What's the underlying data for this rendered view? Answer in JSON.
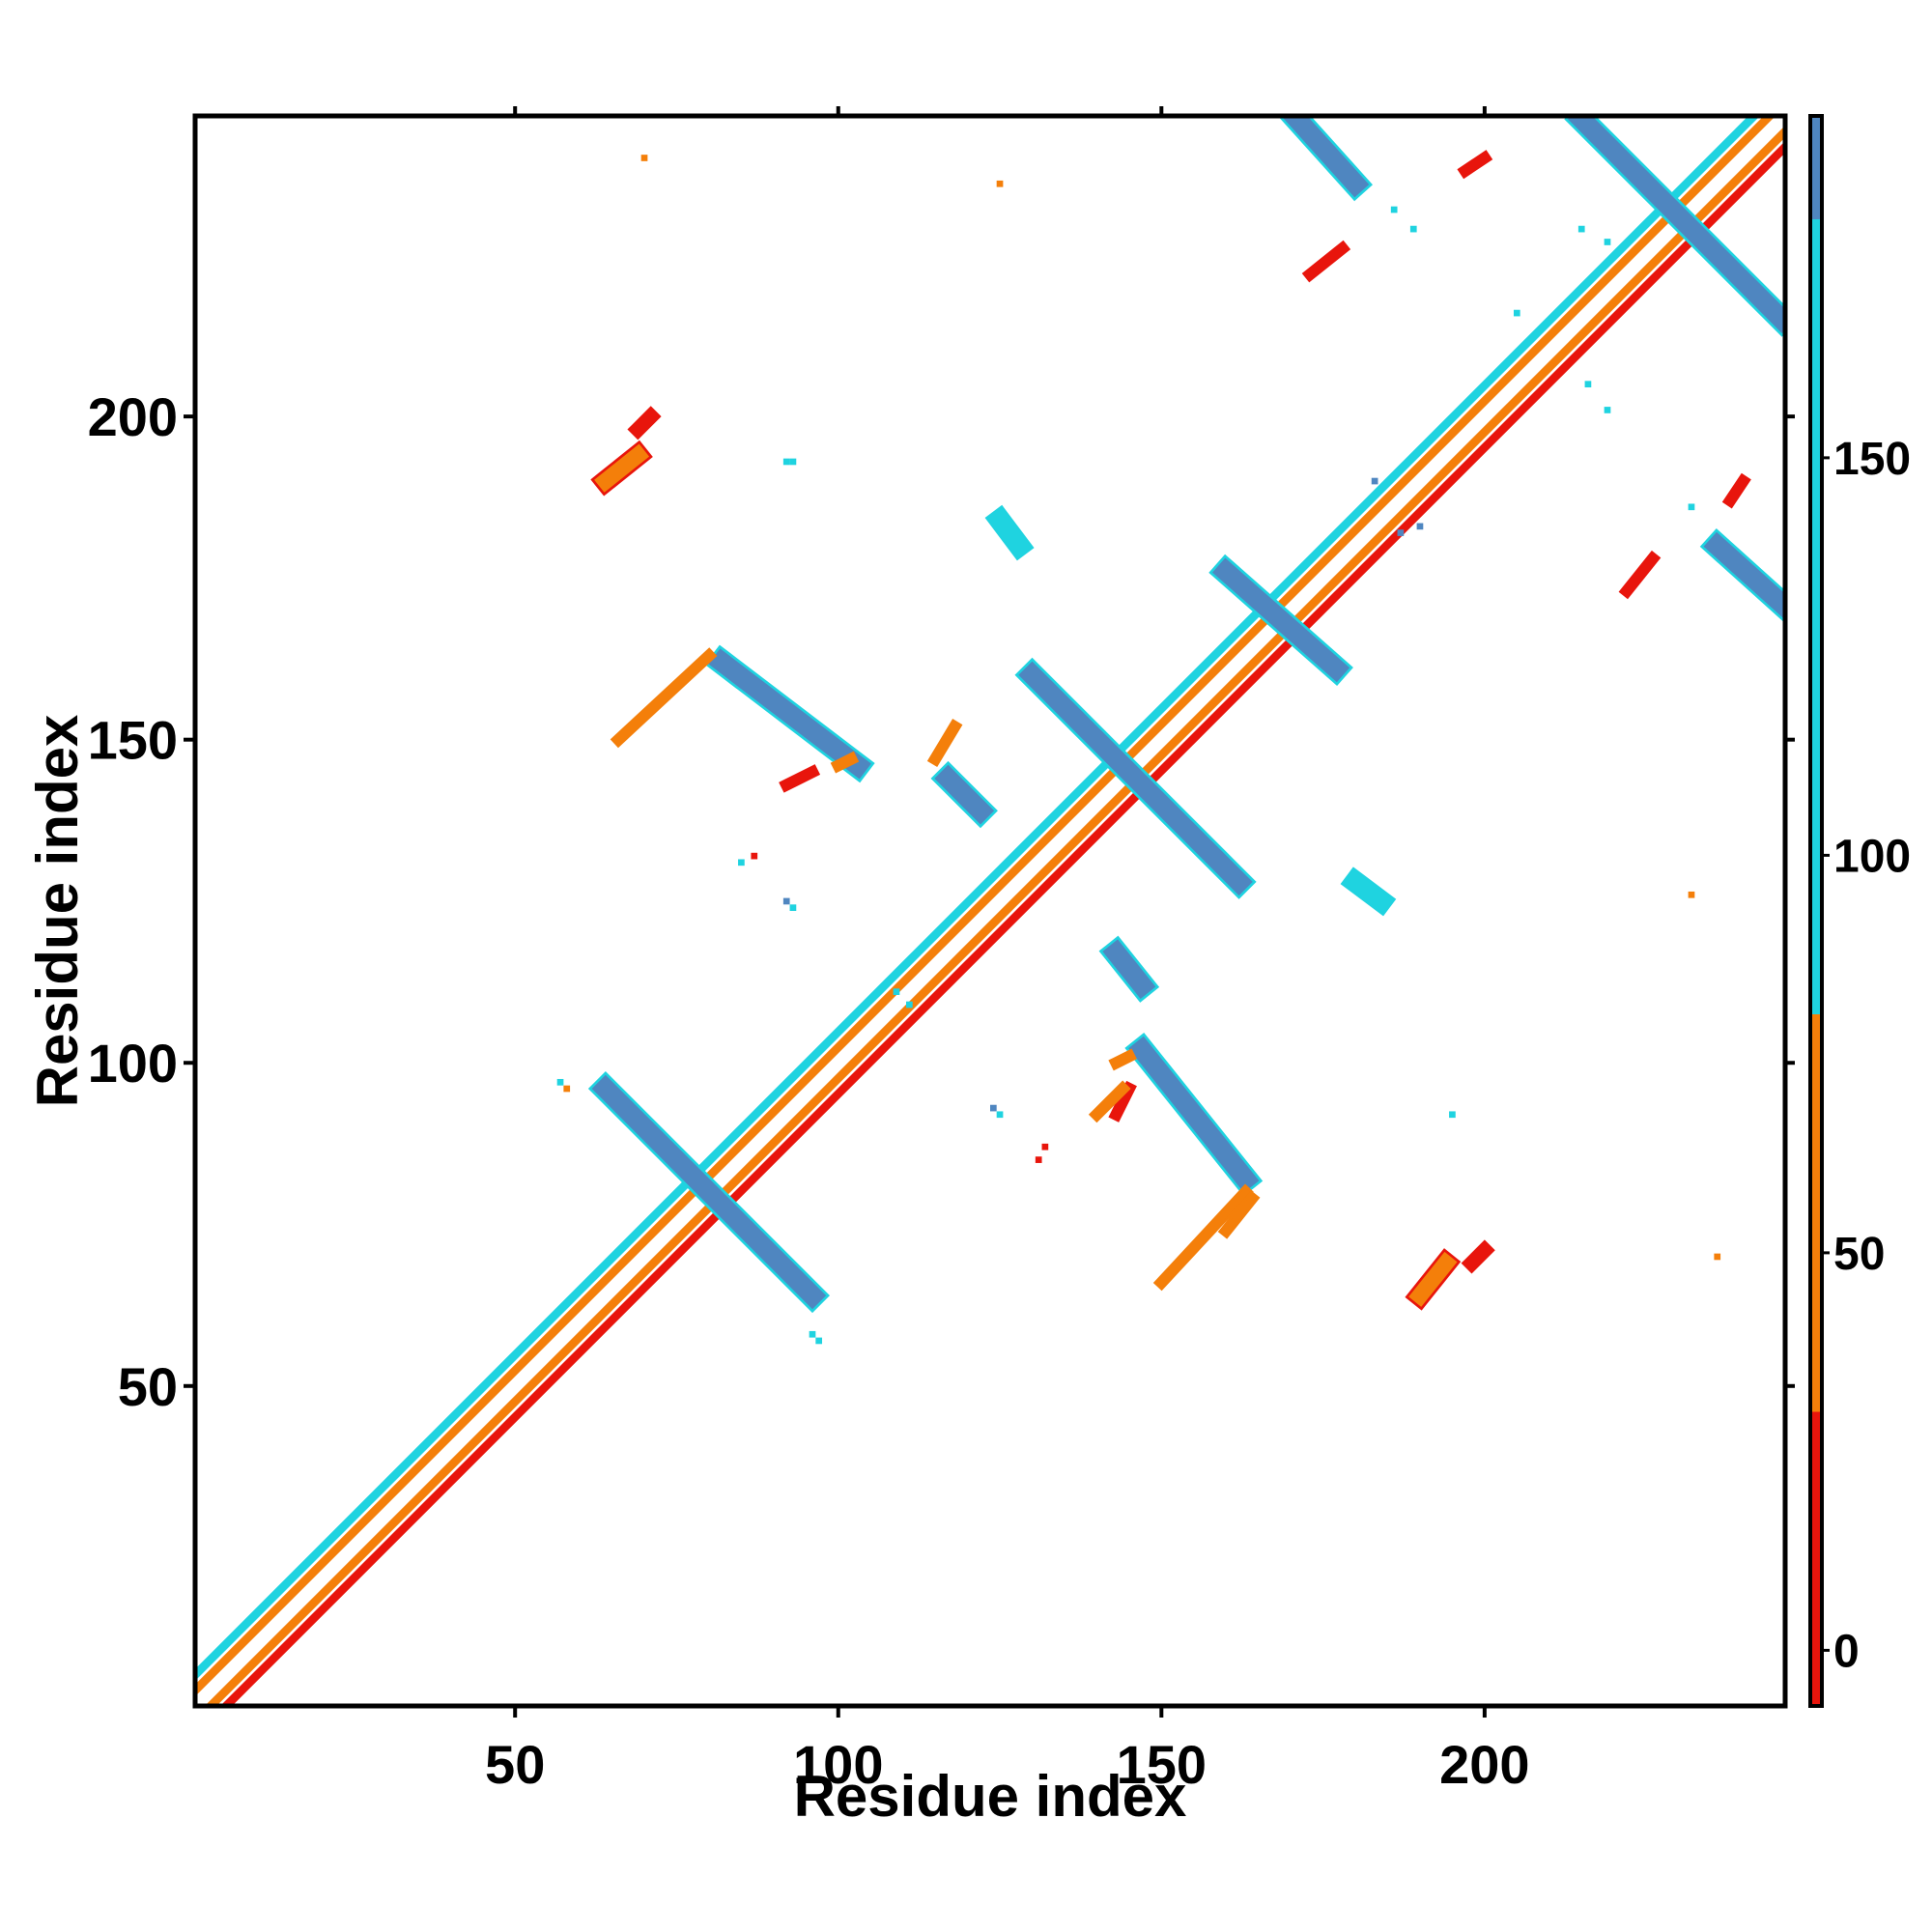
{
  "chart_data": {
    "type": "heatmap",
    "title": "",
    "xlabel": "Residue index",
    "ylabel": "Residue index",
    "xlim": [
      1,
      246
    ],
    "ylim": [
      1,
      246
    ],
    "x_ticks": [
      50,
      100,
      150,
      200
    ],
    "y_ticks": [
      50,
      100,
      150,
      200
    ],
    "grid": false,
    "colorbar": {
      "ticks": [
        0,
        50,
        100,
        150
      ],
      "range": [
        -7,
        193
      ],
      "bands": [
        {
          "from": -7,
          "to": 30,
          "color": "#e8150c"
        },
        {
          "from": 30,
          "to": 80,
          "color": "#f47f0a"
        },
        {
          "from": 80,
          "to": 180,
          "color": "#1fd3e0"
        },
        {
          "from": 180,
          "to": 193,
          "color": "#4f86c0"
        }
      ]
    },
    "features": [
      {
        "kind": "diagonal",
        "from": 1,
        "to": 246,
        "bands": [
          {
            "offset": 0,
            "width": 1.2,
            "color": "#ffffff"
          },
          {
            "offset": 1.2,
            "width": 1.3,
            "color": "#f47f0a"
          },
          {
            "offset": 2.4,
            "width": 1.3,
            "color": "#e8150c"
          },
          {
            "offset": -1.2,
            "width": 1.3,
            "color": "#f47f0a"
          },
          {
            "offset": -2.4,
            "width": 1.3,
            "color": "#1fd3e0"
          }
        ]
      },
      {
        "kind": "segment",
        "x1": 64,
        "y1": 96,
        "x2": 96,
        "y2": 64,
        "width": 3,
        "color": "#4f86c0",
        "edge": "#1fd3e0"
      },
      {
        "kind": "segment",
        "x1": 82,
        "y1": 162,
        "x2": 103,
        "y2": 146,
        "width": 3,
        "color": "#4f86c0",
        "edge": "#1fd3e0"
      },
      {
        "kind": "segment",
        "x1": 130,
        "y1": 160,
        "x2": 162,
        "y2": 128,
        "width": 3,
        "color": "#4f86c0",
        "edge": "#1fd3e0"
      },
      {
        "kind": "segment",
        "x1": 160,
        "y1": 176,
        "x2": 177,
        "y2": 161,
        "width": 3,
        "color": "#4f86c0",
        "edge": "#1fd3e0"
      },
      {
        "kind": "segment",
        "x1": 147,
        "y1": 102,
        "x2": 163,
        "y2": 82,
        "width": 3,
        "color": "#4f86c0",
        "edge": "#1fd3e0"
      },
      {
        "kind": "segment",
        "x1": 117,
        "y1": 144,
        "x2": 122,
        "y2": 139,
        "width": 3,
        "color": "#4f86c0",
        "edge": "#1fd3e0"
      },
      {
        "kind": "segment",
        "x1": 143,
        "y1": 117,
        "x2": 147,
        "y2": 112,
        "width": 3,
        "color": "#4f86c0",
        "edge": "#1fd3e0"
      },
      {
        "kind": "segment",
        "x1": 171,
        "y1": 246,
        "x2": 180,
        "y2": 236,
        "width": 3,
        "color": "#4f86c0",
        "edge": "#1fd3e0"
      },
      {
        "kind": "segment",
        "x1": 215,
        "y1": 246,
        "x2": 246,
        "y2": 215,
        "width": 3,
        "color": "#4f86c0",
        "edge": "#1fd3e0"
      },
      {
        "kind": "segment",
        "x1": 236,
        "y1": 180,
        "x2": 246,
        "y2": 171,
        "width": 3,
        "color": "#4f86c0",
        "edge": "#1fd3e0"
      },
      {
        "kind": "segment",
        "x1": 125,
        "y1": 184,
        "x2": 128,
        "y2": 180,
        "width": 2.5,
        "color": "#1fd3e0",
        "edge": "#1fd3e0"
      },
      {
        "kind": "segment",
        "x1": 180,
        "y1": 128,
        "x2": 184,
        "y2": 125,
        "width": 2.5,
        "color": "#1fd3e0",
        "edge": "#1fd3e0"
      },
      {
        "kind": "segment",
        "x1": 64,
        "y1": 190,
        "x2": 69,
        "y2": 194,
        "width": 2.5,
        "color": "#f47f0a",
        "edge": "#e8150c"
      },
      {
        "kind": "segment",
        "x1": 190,
        "y1": 64,
        "x2": 194,
        "y2": 69,
        "width": 2.5,
        "color": "#f47f0a",
        "edge": "#e8150c"
      },
      {
        "kind": "segment",
        "x1": 69,
        "y1": 198,
        "x2": 71,
        "y2": 200,
        "width": 1.5,
        "color": "#e8150c",
        "edge": "#e8150c"
      },
      {
        "kind": "segment",
        "x1": 198,
        "y1": 69,
        "x2": 200,
        "y2": 71,
        "width": 1.5,
        "color": "#e8150c",
        "edge": "#e8150c"
      },
      {
        "kind": "segment",
        "x1": 66,
        "y1": 150,
        "x2": 80,
        "y2": 163,
        "width": 1,
        "color": "#f47f0a",
        "edge": "#f47f0a"
      },
      {
        "kind": "segment",
        "x1": 150,
        "y1": 66,
        "x2": 163,
        "y2": 80,
        "width": 1,
        "color": "#f47f0a",
        "edge": "#f47f0a"
      },
      {
        "kind": "segment",
        "x1": 92,
        "y1": 143,
        "x2": 96,
        "y2": 145,
        "width": 1,
        "color": "#e8150c",
        "edge": "#e8150c"
      },
      {
        "kind": "segment",
        "x1": 143,
        "y1": 92,
        "x2": 145,
        "y2": 96,
        "width": 1,
        "color": "#e8150c",
        "edge": "#e8150c"
      },
      {
        "kind": "segment",
        "x1": 115,
        "y1": 147,
        "x2": 118,
        "y2": 152,
        "width": 1,
        "color": "#f47f0a",
        "edge": "#f47f0a"
      },
      {
        "kind": "segment",
        "x1": 222,
        "y1": 173,
        "x2": 226,
        "y2": 178,
        "width": 1,
        "color": "#e8150c",
        "edge": "#e8150c"
      },
      {
        "kind": "segment",
        "x1": 173,
        "y1": 222,
        "x2": 178,
        "y2": 226,
        "width": 1,
        "color": "#e8150c",
        "edge": "#e8150c"
      },
      {
        "kind": "segment",
        "x1": 197,
        "y1": 238,
        "x2": 200,
        "y2": 240,
        "width": 1,
        "color": "#e8150c",
        "edge": "#e8150c"
      },
      {
        "kind": "segment",
        "x1": 238,
        "y1": 187,
        "x2": 240,
        "y2": 190,
        "width": 1,
        "color": "#e8150c",
        "edge": "#e8150c"
      },
      {
        "kind": "segment",
        "x1": 140,
        "y1": 92,
        "x2": 144,
        "y2": 96,
        "width": 1,
        "color": "#f47f0a",
        "edge": "#f47f0a"
      },
      {
        "kind": "segment",
        "x1": 100,
        "y1": 146,
        "x2": 102,
        "y2": 147,
        "width": 1,
        "color": "#f47f0a",
        "edge": "#f47f0a"
      },
      {
        "kind": "segment",
        "x1": 143,
        "y1": 100,
        "x2": 145,
        "y2": 101,
        "width": 1,
        "color": "#f47f0a",
        "edge": "#f47f0a"
      },
      {
        "kind": "segment",
        "x1": 160,
        "y1": 74,
        "x2": 164,
        "y2": 79,
        "width": 1,
        "color": "#f47f0a",
        "edge": "#f47f0a"
      },
      {
        "kind": "cell",
        "x": 70,
        "y": 240,
        "color": "#f47f0a"
      },
      {
        "kind": "cell",
        "x": 125,
        "y": 236,
        "color": "#f47f0a"
      },
      {
        "kind": "cell",
        "x": 215,
        "y": 229,
        "color": "#1fd3e0"
      },
      {
        "kind": "cell",
        "x": 219,
        "y": 227,
        "color": "#1fd3e0"
      },
      {
        "kind": "cell",
        "x": 92,
        "y": 193,
        "color": "#1fd3e0"
      },
      {
        "kind": "cell",
        "x": 93,
        "y": 193,
        "color": "#1fd3e0"
      },
      {
        "kind": "cell",
        "x": 195,
        "y": 92,
        "color": "#1fd3e0"
      },
      {
        "kind": "cell",
        "x": 85,
        "y": 131,
        "color": "#1fd3e0"
      },
      {
        "kind": "cell",
        "x": 87,
        "y": 132,
        "color": "#e8150c"
      },
      {
        "kind": "cell",
        "x": 131,
        "y": 85,
        "color": "#e8150c"
      },
      {
        "kind": "cell",
        "x": 132,
        "y": 87,
        "color": "#e8150c"
      },
      {
        "kind": "cell",
        "x": 92,
        "y": 125,
        "color": "#4f86c0"
      },
      {
        "kind": "cell",
        "x": 93,
        "y": 124,
        "color": "#1fd3e0"
      },
      {
        "kind": "cell",
        "x": 125,
        "y": 92,
        "color": "#1fd3e0"
      },
      {
        "kind": "cell",
        "x": 124,
        "y": 93,
        "color": "#4f86c0"
      },
      {
        "kind": "cell",
        "x": 232,
        "y": 126,
        "color": "#f47f0a"
      },
      {
        "kind": "cell",
        "x": 236,
        "y": 70,
        "color": "#f47f0a"
      },
      {
        "kind": "cell",
        "x": 57,
        "y": 97,
        "color": "#1fd3e0"
      },
      {
        "kind": "cell",
        "x": 58,
        "y": 96,
        "color": "#f47f0a"
      },
      {
        "kind": "cell",
        "x": 97,
        "y": 57,
        "color": "#1fd3e0"
      },
      {
        "kind": "cell",
        "x": 96,
        "y": 58,
        "color": "#1fd3e0"
      },
      {
        "kind": "cell",
        "x": 145,
        "y": 101,
        "color": "#f47f0a"
      },
      {
        "kind": "cell",
        "x": 183,
        "y": 190,
        "color": "#4f86c0"
      },
      {
        "kind": "cell",
        "x": 190,
        "y": 183,
        "color": "#4f86c0"
      },
      {
        "kind": "cell",
        "x": 205,
        "y": 216,
        "color": "#1fd3e0"
      },
      {
        "kind": "cell",
        "x": 216,
        "y": 205,
        "color": "#1fd3e0"
      },
      {
        "kind": "cell",
        "x": 232,
        "y": 186,
        "color": "#1fd3e0"
      },
      {
        "kind": "cell",
        "x": 186,
        "y": 232,
        "color": "#1fd3e0"
      },
      {
        "kind": "cell",
        "x": 219,
        "y": 201,
        "color": "#1fd3e0"
      },
      {
        "kind": "cell",
        "x": 109,
        "y": 111,
        "color": "#1fd3e0"
      },
      {
        "kind": "cell",
        "x": 111,
        "y": 109,
        "color": "#1fd3e0"
      },
      {
        "kind": "cell",
        "x": 189,
        "y": 229,
        "color": "#1fd3e0"
      },
      {
        "kind": "cell",
        "x": 187,
        "y": 182,
        "color": "#4f86c0"
      }
    ]
  }
}
